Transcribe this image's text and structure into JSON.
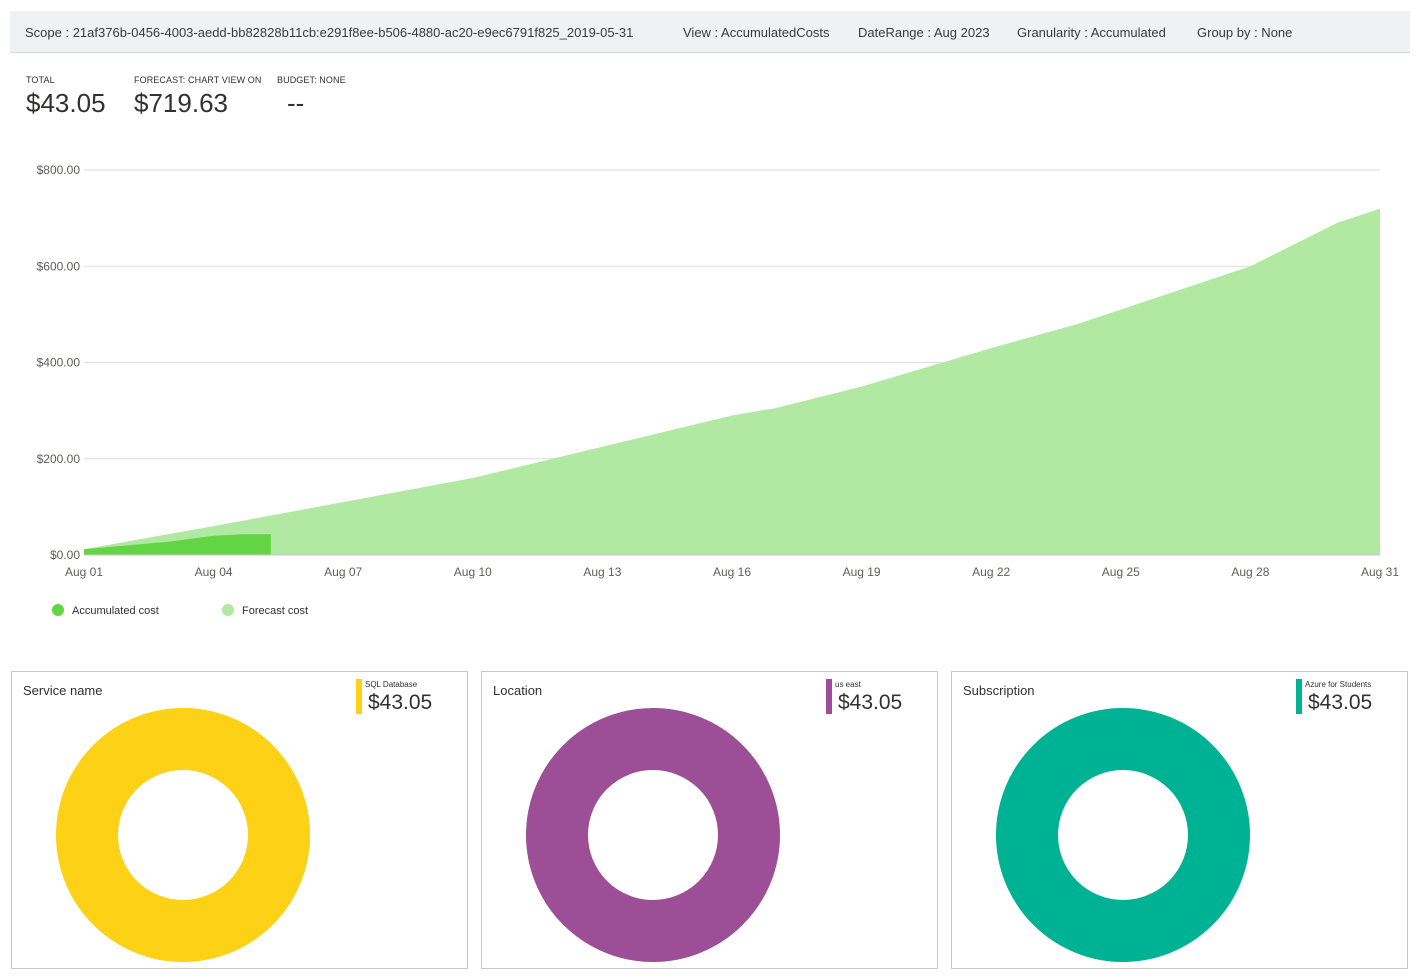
{
  "scope_bar": {
    "scope": "Scope  :  21af376b-0456-4003-aedd-bb82828b11cb:e291f8ee-b506-4880-ac20-e9ec6791f825_2019-05-31",
    "view": "View : AccumulatedCosts",
    "date_range": "DateRange : Aug 2023",
    "granularity": "Granularity : Accumulated",
    "group_by": "Group by : None"
  },
  "kpis": [
    {
      "label": "TOTAL",
      "value": "$43.05"
    },
    {
      "label": "FORECAST: CHART VIEW ON",
      "value": "$719.63"
    },
    {
      "label": "BUDGET: NONE",
      "value": "--"
    }
  ],
  "chart_data": {
    "type": "area",
    "y_ticks": [
      "$0.00",
      "$200.00",
      "$400.00",
      "$600.00",
      "$800.00"
    ],
    "ylim": [
      0,
      800
    ],
    "x_ticks": [
      "Aug 01",
      "Aug 04",
      "Aug 07",
      "Aug 10",
      "Aug 13",
      "Aug 16",
      "Aug 19",
      "Aug 22",
      "Aug 25",
      "Aug 28",
      "Aug 31"
    ],
    "series": [
      {
        "name": "Accumulated cost",
        "color": "#63d444",
        "x": [
          "Aug 01",
          "Aug 02",
          "Aug 03",
          "Aug 04",
          "Aug 05"
        ],
        "values": [
          12,
          20,
          28,
          40,
          43.05
        ]
      },
      {
        "name": "Forecast cost",
        "color": "#b1e9a3",
        "x": [
          "Aug 01",
          "Aug 04",
          "Aug 07",
          "Aug 10",
          "Aug 13",
          "Aug 16",
          "Aug 17",
          "Aug 19",
          "Aug 22",
          "Aug 24",
          "Aug 28",
          "Aug 30",
          "Aug 31"
        ],
        "values": [
          12,
          60,
          110,
          160,
          225,
          290,
          305,
          350,
          430,
          480,
          600,
          690,
          719.63
        ]
      }
    ],
    "grid": true,
    "legend_position": "bottom-left"
  },
  "legend": [
    {
      "label": "Accumulated cost",
      "color": "#63d444"
    },
    {
      "label": "Forecast cost",
      "color": "#b1e9a3"
    }
  ],
  "cards": [
    {
      "title": "Service name",
      "legend_label": "SQL Database",
      "amount": "$43.05",
      "color": "#fcd116"
    },
    {
      "title": "Location",
      "legend_label": "us east",
      "amount": "$43.05",
      "color": "#9c4f96"
    },
    {
      "title": "Subscription",
      "legend_label": "Azure for Students",
      "amount": "$43.05",
      "color": "#00b294"
    }
  ]
}
